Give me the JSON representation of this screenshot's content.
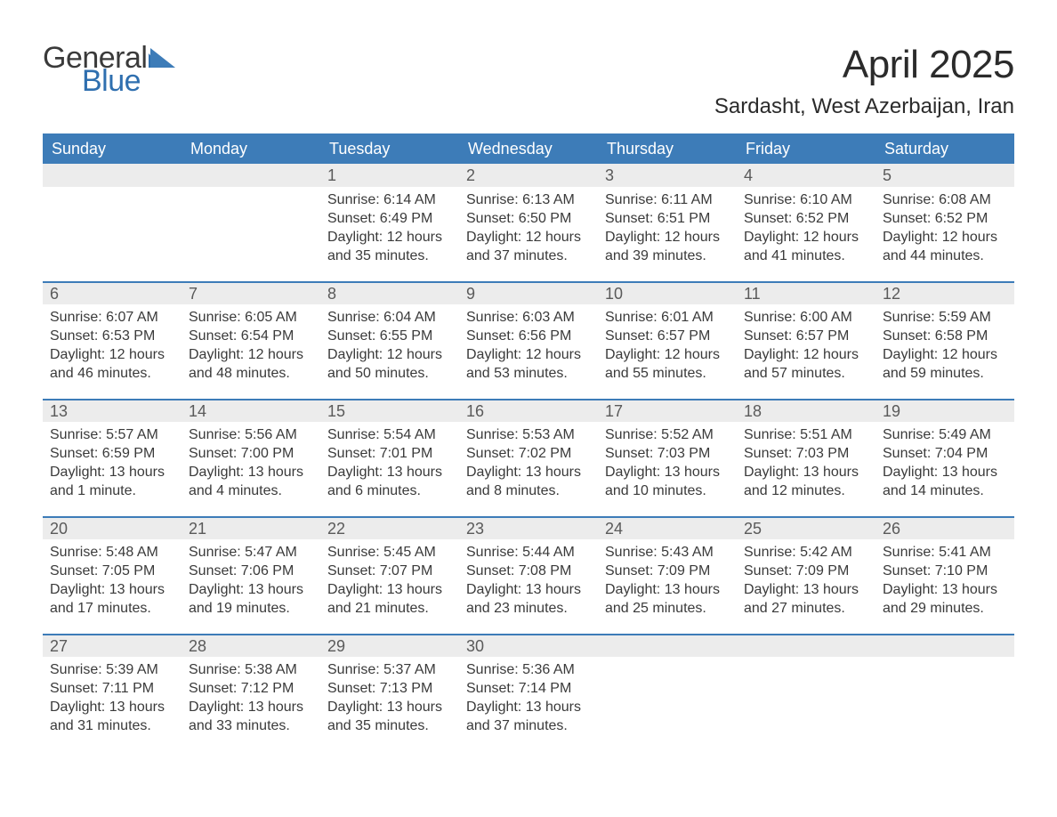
{
  "logo": {
    "word1": "General",
    "word2": "Blue",
    "accent_color": "#2f6faf"
  },
  "title": "April 2025",
  "location": "Sardasht, West Azerbaijan, Iran",
  "header_bg": "#3d7cb8",
  "date_row_bg": "#ececec",
  "week_border": "#3d7cb8",
  "day_headers": [
    "Sunday",
    "Monday",
    "Tuesday",
    "Wednesday",
    "Thursday",
    "Friday",
    "Saturday"
  ],
  "weeks": [
    [
      null,
      null,
      {
        "d": "1",
        "sr": "Sunrise: 6:14 AM",
        "ss": "Sunset: 6:49 PM",
        "dl1": "Daylight: 12 hours",
        "dl2": "and 35 minutes."
      },
      {
        "d": "2",
        "sr": "Sunrise: 6:13 AM",
        "ss": "Sunset: 6:50 PM",
        "dl1": "Daylight: 12 hours",
        "dl2": "and 37 minutes."
      },
      {
        "d": "3",
        "sr": "Sunrise: 6:11 AM",
        "ss": "Sunset: 6:51 PM",
        "dl1": "Daylight: 12 hours",
        "dl2": "and 39 minutes."
      },
      {
        "d": "4",
        "sr": "Sunrise: 6:10 AM",
        "ss": "Sunset: 6:52 PM",
        "dl1": "Daylight: 12 hours",
        "dl2": "and 41 minutes."
      },
      {
        "d": "5",
        "sr": "Sunrise: 6:08 AM",
        "ss": "Sunset: 6:52 PM",
        "dl1": "Daylight: 12 hours",
        "dl2": "and 44 minutes."
      }
    ],
    [
      {
        "d": "6",
        "sr": "Sunrise: 6:07 AM",
        "ss": "Sunset: 6:53 PM",
        "dl1": "Daylight: 12 hours",
        "dl2": "and 46 minutes."
      },
      {
        "d": "7",
        "sr": "Sunrise: 6:05 AM",
        "ss": "Sunset: 6:54 PM",
        "dl1": "Daylight: 12 hours",
        "dl2": "and 48 minutes."
      },
      {
        "d": "8",
        "sr": "Sunrise: 6:04 AM",
        "ss": "Sunset: 6:55 PM",
        "dl1": "Daylight: 12 hours",
        "dl2": "and 50 minutes."
      },
      {
        "d": "9",
        "sr": "Sunrise: 6:03 AM",
        "ss": "Sunset: 6:56 PM",
        "dl1": "Daylight: 12 hours",
        "dl2": "and 53 minutes."
      },
      {
        "d": "10",
        "sr": "Sunrise: 6:01 AM",
        "ss": "Sunset: 6:57 PM",
        "dl1": "Daylight: 12 hours",
        "dl2": "and 55 minutes."
      },
      {
        "d": "11",
        "sr": "Sunrise: 6:00 AM",
        "ss": "Sunset: 6:57 PM",
        "dl1": "Daylight: 12 hours",
        "dl2": "and 57 minutes."
      },
      {
        "d": "12",
        "sr": "Sunrise: 5:59 AM",
        "ss": "Sunset: 6:58 PM",
        "dl1": "Daylight: 12 hours",
        "dl2": "and 59 minutes."
      }
    ],
    [
      {
        "d": "13",
        "sr": "Sunrise: 5:57 AM",
        "ss": "Sunset: 6:59 PM",
        "dl1": "Daylight: 13 hours",
        "dl2": "and 1 minute."
      },
      {
        "d": "14",
        "sr": "Sunrise: 5:56 AM",
        "ss": "Sunset: 7:00 PM",
        "dl1": "Daylight: 13 hours",
        "dl2": "and 4 minutes."
      },
      {
        "d": "15",
        "sr": "Sunrise: 5:54 AM",
        "ss": "Sunset: 7:01 PM",
        "dl1": "Daylight: 13 hours",
        "dl2": "and 6 minutes."
      },
      {
        "d": "16",
        "sr": "Sunrise: 5:53 AM",
        "ss": "Sunset: 7:02 PM",
        "dl1": "Daylight: 13 hours",
        "dl2": "and 8 minutes."
      },
      {
        "d": "17",
        "sr": "Sunrise: 5:52 AM",
        "ss": "Sunset: 7:03 PM",
        "dl1": "Daylight: 13 hours",
        "dl2": "and 10 minutes."
      },
      {
        "d": "18",
        "sr": "Sunrise: 5:51 AM",
        "ss": "Sunset: 7:03 PM",
        "dl1": "Daylight: 13 hours",
        "dl2": "and 12 minutes."
      },
      {
        "d": "19",
        "sr": "Sunrise: 5:49 AM",
        "ss": "Sunset: 7:04 PM",
        "dl1": "Daylight: 13 hours",
        "dl2": "and 14 minutes."
      }
    ],
    [
      {
        "d": "20",
        "sr": "Sunrise: 5:48 AM",
        "ss": "Sunset: 7:05 PM",
        "dl1": "Daylight: 13 hours",
        "dl2": "and 17 minutes."
      },
      {
        "d": "21",
        "sr": "Sunrise: 5:47 AM",
        "ss": "Sunset: 7:06 PM",
        "dl1": "Daylight: 13 hours",
        "dl2": "and 19 minutes."
      },
      {
        "d": "22",
        "sr": "Sunrise: 5:45 AM",
        "ss": "Sunset: 7:07 PM",
        "dl1": "Daylight: 13 hours",
        "dl2": "and 21 minutes."
      },
      {
        "d": "23",
        "sr": "Sunrise: 5:44 AM",
        "ss": "Sunset: 7:08 PM",
        "dl1": "Daylight: 13 hours",
        "dl2": "and 23 minutes."
      },
      {
        "d": "24",
        "sr": "Sunrise: 5:43 AM",
        "ss": "Sunset: 7:09 PM",
        "dl1": "Daylight: 13 hours",
        "dl2": "and 25 minutes."
      },
      {
        "d": "25",
        "sr": "Sunrise: 5:42 AM",
        "ss": "Sunset: 7:09 PM",
        "dl1": "Daylight: 13 hours",
        "dl2": "and 27 minutes."
      },
      {
        "d": "26",
        "sr": "Sunrise: 5:41 AM",
        "ss": "Sunset: 7:10 PM",
        "dl1": "Daylight: 13 hours",
        "dl2": "and 29 minutes."
      }
    ],
    [
      {
        "d": "27",
        "sr": "Sunrise: 5:39 AM",
        "ss": "Sunset: 7:11 PM",
        "dl1": "Daylight: 13 hours",
        "dl2": "and 31 minutes."
      },
      {
        "d": "28",
        "sr": "Sunrise: 5:38 AM",
        "ss": "Sunset: 7:12 PM",
        "dl1": "Daylight: 13 hours",
        "dl2": "and 33 minutes."
      },
      {
        "d": "29",
        "sr": "Sunrise: 5:37 AM",
        "ss": "Sunset: 7:13 PM",
        "dl1": "Daylight: 13 hours",
        "dl2": "and 35 minutes."
      },
      {
        "d": "30",
        "sr": "Sunrise: 5:36 AM",
        "ss": "Sunset: 7:14 PM",
        "dl1": "Daylight: 13 hours",
        "dl2": "and 37 minutes."
      },
      null,
      null,
      null
    ]
  ]
}
